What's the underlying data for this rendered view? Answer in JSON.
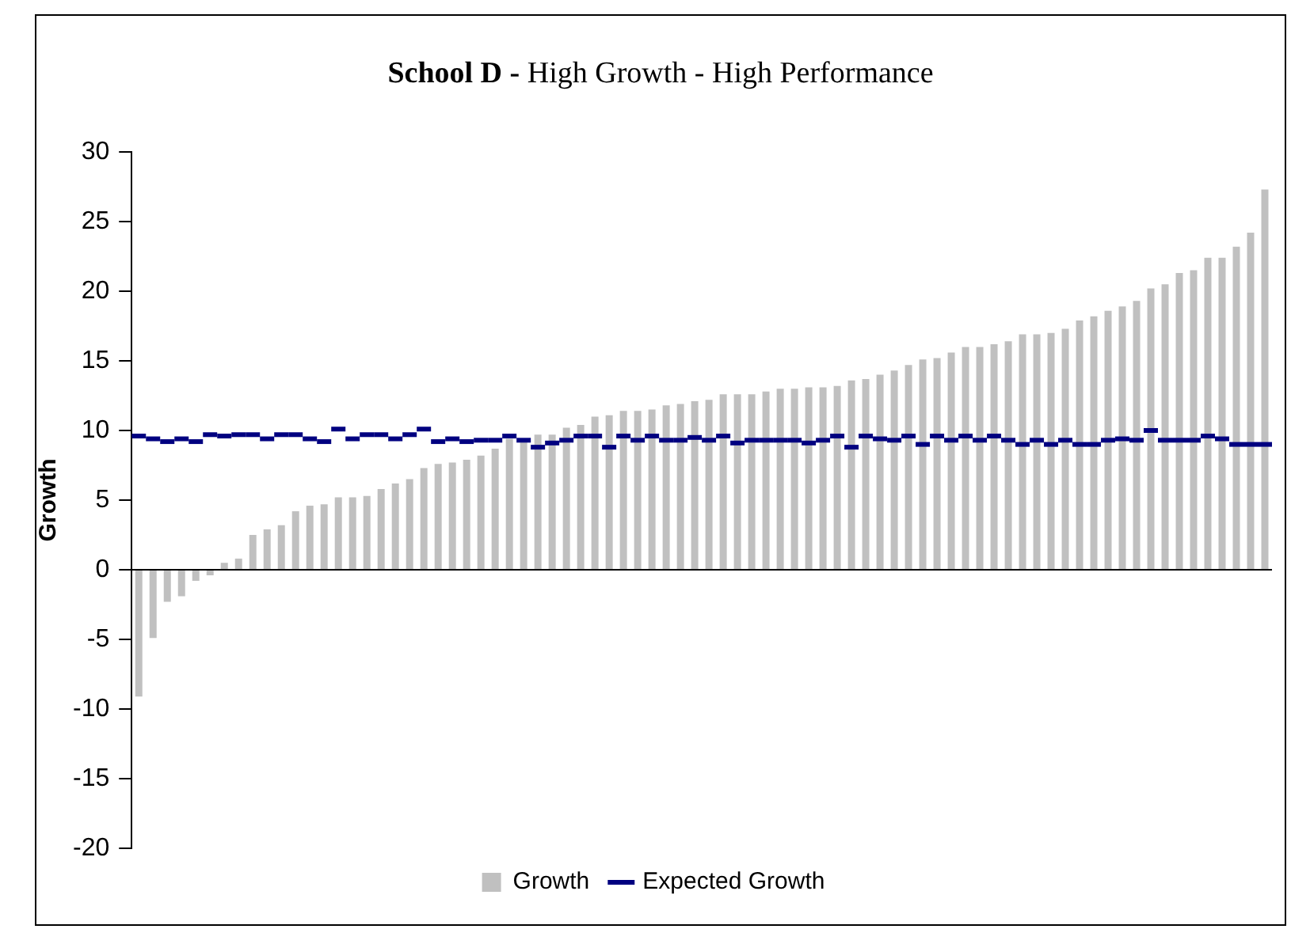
{
  "chart_data": {
    "type": "bar",
    "title": "School D - High Growth - High Performance",
    "ylabel": "Growth",
    "categories": [
      null,
      null,
      null,
      null,
      null,
      null,
      null,
      null,
      null,
      null,
      null,
      null,
      null,
      null,
      null,
      null,
      null,
      null,
      null,
      null,
      null,
      null,
      null,
      null,
      null,
      null,
      null,
      null,
      null,
      null,
      null,
      null,
      null,
      null,
      null,
      null,
      null,
      null,
      null,
      null,
      null,
      null,
      null,
      null,
      null,
      null,
      null,
      null,
      null,
      null,
      null,
      null,
      null,
      null,
      null,
      null,
      null,
      null,
      null,
      null,
      null,
      null,
      null,
      null,
      null,
      null,
      null,
      null,
      null,
      null,
      null,
      null,
      null,
      null,
      null,
      null,
      null,
      null,
      null,
      null
    ],
    "series": [
      {
        "name": "Growth",
        "color": "#c0c0c0",
        "values": [
          -9.1,
          -4.9,
          -2.3,
          -1.9,
          -0.8,
          -0.4,
          0.5,
          0.8,
          2.5,
          2.9,
          3.2,
          4.2,
          4.6,
          4.7,
          5.2,
          5.2,
          5.3,
          5.8,
          6.2,
          6.5,
          7.3,
          7.6,
          7.7,
          7.9,
          8.2,
          8.7,
          9.4,
          9.3,
          9.7,
          9.7,
          10.2,
          10.4,
          11.0,
          11.1,
          11.4,
          11.4,
          11.5,
          11.8,
          11.9,
          12.1,
          12.2,
          12.6,
          12.6,
          12.6,
          12.8,
          13.0,
          13.0,
          13.1,
          13.1,
          13.2,
          13.6,
          13.7,
          14.0,
          14.3,
          14.7,
          15.1,
          15.2,
          15.6,
          16.0,
          16.0,
          16.2,
          16.4,
          16.9,
          16.9,
          17.0,
          17.3,
          17.9,
          18.2,
          18.6,
          18.9,
          19.3,
          20.2,
          20.5,
          21.3,
          21.5,
          22.4,
          22.4,
          23.2,
          24.2,
          27.3
        ]
      },
      {
        "name": "Expected Growth",
        "type": "scatter",
        "color": "#000080",
        "values": [
          9.6,
          9.4,
          9.2,
          9.4,
          9.2,
          9.7,
          9.6,
          9.7,
          9.7,
          9.4,
          9.7,
          9.7,
          9.4,
          9.2,
          10.1,
          9.4,
          9.7,
          9.7,
          9.4,
          9.7,
          10.1,
          9.2,
          9.4,
          9.2,
          9.3,
          9.3,
          9.6,
          9.3,
          8.8,
          9.1,
          9.3,
          9.6,
          9.6,
          8.8,
          9.6,
          9.3,
          9.6,
          9.3,
          9.3,
          9.5,
          9.3,
          9.6,
          9.1,
          9.3,
          9.3,
          9.3,
          9.3,
          9.1,
          9.3,
          9.6,
          8.8,
          9.6,
          9.4,
          9.3,
          9.6,
          9.0,
          9.6,
          9.3,
          9.6,
          9.3,
          9.6,
          9.3,
          9.0,
          9.3,
          9.0,
          9.3,
          9.0,
          9.0,
          9.3,
          9.4,
          9.3,
          10.0,
          9.3,
          9.3,
          9.3,
          9.6,
          9.4,
          9.0,
          9.0,
          9.0
        ]
      }
    ],
    "ylim": [
      -20,
      30
    ],
    "yticks": [
      -20,
      -15,
      -10,
      -5,
      0,
      5,
      10,
      15,
      20,
      25,
      30
    ],
    "legend": "bottom"
  }
}
